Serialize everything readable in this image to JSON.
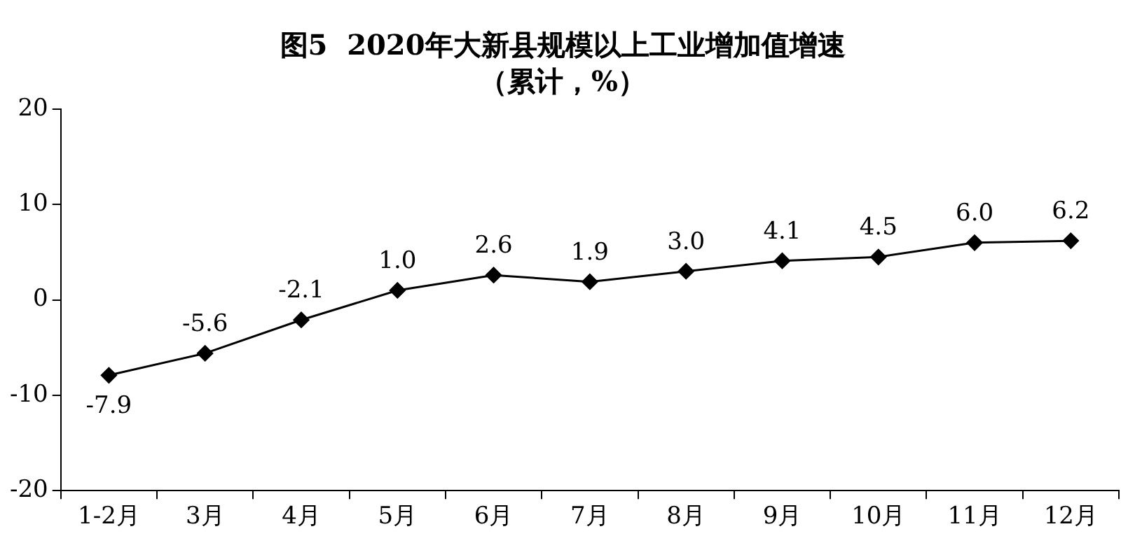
{
  "chart_data": {
    "type": "line",
    "title": "图5  2020年大新县规模以上工业增加值增速",
    "subtitle": "（累计，%）",
    "categories": [
      "1-2月",
      "3月",
      "4月",
      "5月",
      "6月",
      "7月",
      "8月",
      "9月",
      "10月",
      "11月",
      "12月"
    ],
    "series": [
      {
        "color": "#000000",
        "values": [
          -7.9,
          -5.6,
          -2.1,
          1.0,
          2.6,
          1.9,
          3.0,
          4.1,
          4.5,
          6.0,
          6.2
        ],
        "value_labels": [
          "-7.9",
          "-5.6",
          "-2.1",
          "1.0",
          "2.6",
          "1.9",
          "3.0",
          "4.1",
          "4.5",
          "6.0",
          "6.2"
        ]
      }
    ],
    "ylim": [
      -20,
      20
    ],
    "yticks": [
      -20,
      -10,
      0,
      10,
      20
    ],
    "grid": false,
    "legend": false,
    "marker": "diamond",
    "line_style": "solid"
  }
}
